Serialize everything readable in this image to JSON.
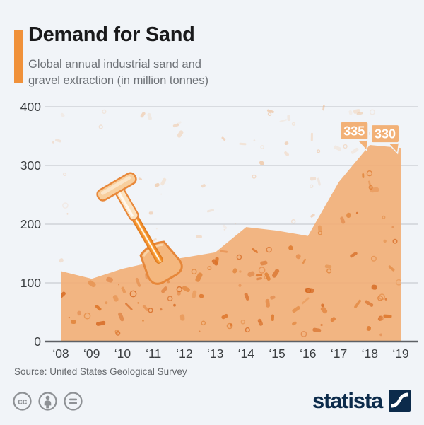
{
  "page": {
    "background": "#f1f4f8"
  },
  "header": {
    "title": "Demand for Sand",
    "subtitle_line1": "Global annual industrial sand and",
    "subtitle_line2": "gravel extraction (in million tonnes)",
    "accent_color": "#f0913a"
  },
  "chart_data": {
    "type": "area",
    "title": "Demand for Sand",
    "subtitle": "Global annual industrial sand and gravel extraction (in million tonnes)",
    "unit": "million tonnes",
    "categories": [
      "‘08",
      "‘09",
      "‘10",
      "‘11",
      "‘12",
      "‘13",
      "‘14",
      "‘15",
      "‘16",
      "‘17",
      "‘18",
      "‘19"
    ],
    "values": [
      120,
      107,
      124,
      136,
      143,
      152,
      195,
      189,
      180,
      272,
      335,
      330
    ],
    "ylim": [
      0,
      400
    ],
    "y_ticks": [
      0,
      100,
      200,
      300,
      400
    ],
    "grid": true,
    "legend": false,
    "annotations": [
      {
        "category": "‘18",
        "label": "335"
      },
      {
        "category": "‘19",
        "label": "330"
      }
    ],
    "colors": {
      "area_fill": "#f2ae74",
      "particle": "#dd7327",
      "particle_light": "#f0b585",
      "gridline": "#c9ccd1",
      "axis_line": "#5d6065",
      "tick_text": "#3c3f42",
      "callout_bubble": "#f2b177",
      "callout_text": "#ffffff"
    }
  },
  "footer": {
    "source": "Source: United States Geological Survey",
    "license": {
      "icons": [
        "cc-icon",
        "attribution-icon",
        "equal-icon"
      ]
    },
    "brand": {
      "name": "statista",
      "color": "#0c2b4b"
    }
  }
}
